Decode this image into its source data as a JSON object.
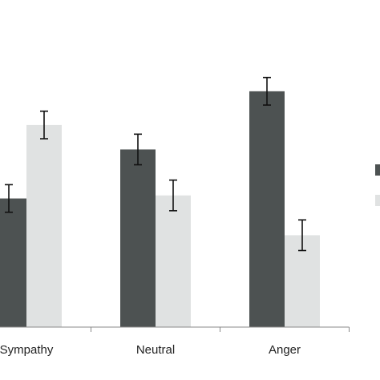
{
  "chart_data": {
    "type": "bar",
    "categories": [
      "Sympathy",
      "Neutral",
      "Anger"
    ],
    "series": [
      {
        "values": [
          4.2,
          5.8,
          7.7
        ],
        "errors": [
          0.45,
          0.5,
          0.45
        ]
      },
      {
        "values": [
          6.6,
          4.3,
          3.0
        ],
        "errors": [
          0.45,
          0.5,
          0.5
        ]
      }
    ],
    "ylim": [
      0,
      10
    ],
    "grid": false,
    "legend": "right",
    "colors": [
      "#4d5252",
      "#e0e2e2"
    ]
  }
}
